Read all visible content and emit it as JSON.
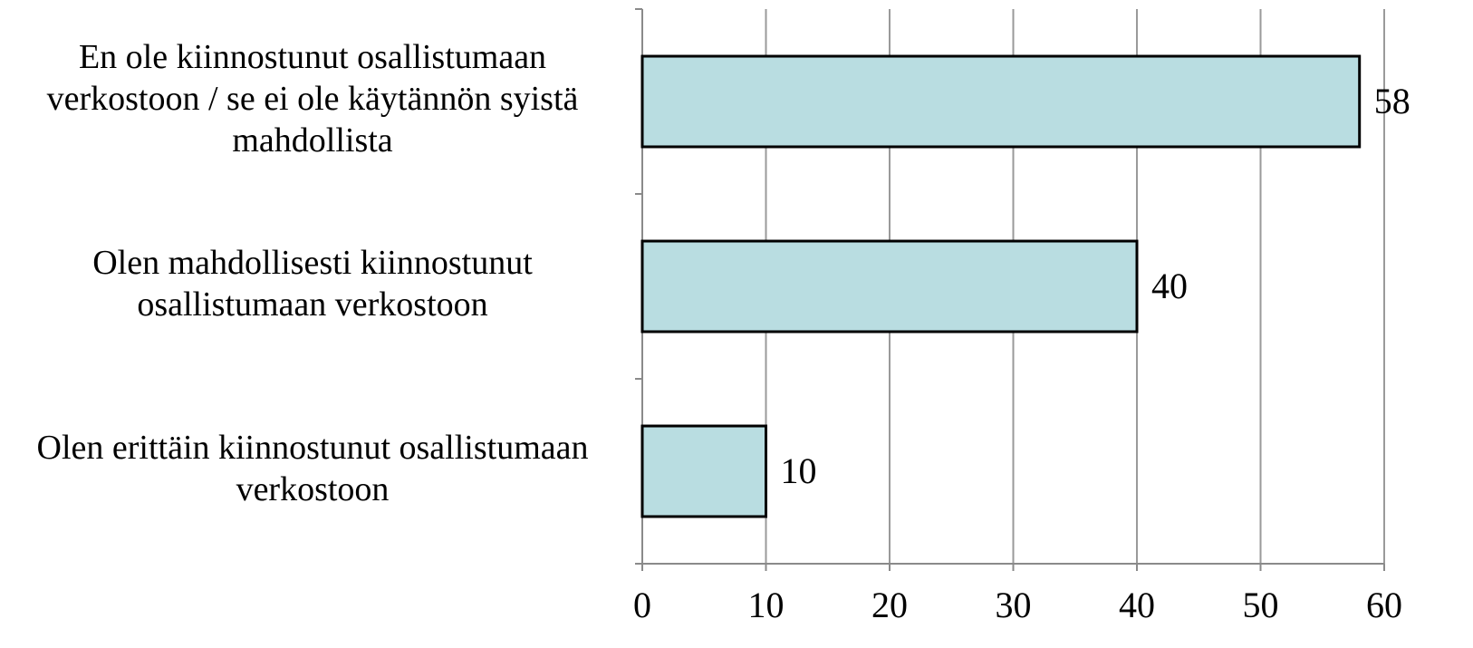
{
  "chart_data": {
    "type": "bar",
    "orientation": "horizontal",
    "categories": [
      "En ole kiinnostunut osallistumaan\nverkostoon / se ei ole käytännön syistä\nmahdollista",
      "Olen mahdollisesti kiinnostunut\nosallistumaan verkostoon",
      "Olen erittäin kiinnostunut osallistumaan\nverkostoon"
    ],
    "values": [
      58,
      40,
      10
    ],
    "color": "#b9dde1",
    "xlim": [
      0,
      60
    ],
    "xticks": [
      0,
      10,
      20,
      30,
      40,
      50,
      60
    ],
    "grid": true
  }
}
